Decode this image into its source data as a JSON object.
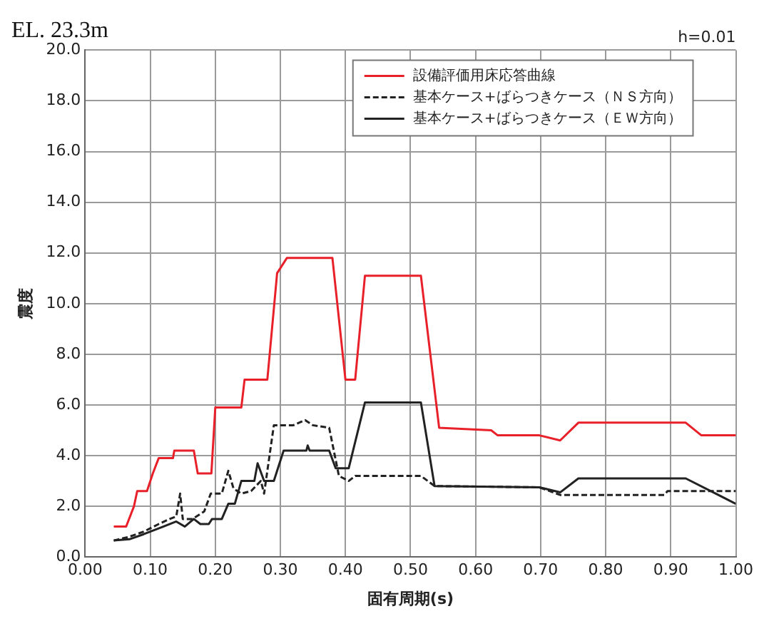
{
  "chart_data": {
    "type": "line",
    "title": "EL. 23.3m",
    "xlabel": "固有周期(s)",
    "ylabel": "震度",
    "annotations": [
      "h=0.01"
    ],
    "xlim": [
      0,
      1
    ],
    "ylim": [
      0,
      20
    ],
    "xticks": [
      {
        "value": 0,
        "label": "0.00"
      },
      {
        "value": 0.1,
        "label": "0.10"
      },
      {
        "value": 0.2,
        "label": "0.20"
      },
      {
        "value": 0.3,
        "label": "0.30"
      },
      {
        "value": 0.4,
        "label": "0.40"
      },
      {
        "value": 0.5,
        "label": "0.50"
      },
      {
        "value": 0.6,
        "label": "0.60"
      },
      {
        "value": 0.7,
        "label": "0.70"
      },
      {
        "value": 0.8,
        "label": "0.80"
      },
      {
        "value": 0.9,
        "label": "0.90"
      },
      {
        "value": 1,
        "label": "1.00"
      }
    ],
    "yticks": [
      {
        "value": 0,
        "label": "0.0"
      },
      {
        "value": 2,
        "label": "2.0"
      },
      {
        "value": 4,
        "label": "4.0"
      },
      {
        "value": 6,
        "label": "6.0"
      },
      {
        "value": 8,
        "label": "8.0"
      },
      {
        "value": 10,
        "label": "10.0"
      },
      {
        "value": 12,
        "label": "12.0"
      },
      {
        "value": 14,
        "label": "14.0"
      },
      {
        "value": 16,
        "label": "16.0"
      },
      {
        "value": 18,
        "label": "18.0"
      },
      {
        "value": 20,
        "label": "20.0"
      }
    ],
    "grid": true,
    "legend": "top right",
    "marker": "none",
    "series": [
      {
        "name": "設備評価用床応答曲線",
        "color": "#e8202a",
        "line_style": "solid",
        "x": [
          0.044,
          0.063,
          0.075,
          0.08,
          0.095,
          0.104,
          0.113,
          0.135,
          0.137,
          0.167,
          0.173,
          0.194,
          0.2,
          0.24,
          0.245,
          0.28,
          0.295,
          0.31,
          0.38,
          0.4,
          0.415,
          0.43,
          0.516,
          0.544,
          0.624,
          0.634,
          0.698,
          0.73,
          0.758,
          0.923,
          0.947,
          1.0
        ],
        "values": [
          1.2,
          1.2,
          2.0,
          2.6,
          2.6,
          3.3,
          3.9,
          3.9,
          4.2,
          4.2,
          3.3,
          3.3,
          5.9,
          5.9,
          7.0,
          7.0,
          11.2,
          11.8,
          11.8,
          7.0,
          7.0,
          11.1,
          11.1,
          5.1,
          5.0,
          4.8,
          4.8,
          4.6,
          5.3,
          5.3,
          4.8,
          4.8
        ]
      },
      {
        "name": "基本ケース+ばらつきケース（ＮＳ方向）",
        "color": "#222222",
        "line_style": "dashed",
        "x": [
          0.044,
          0.068,
          0.09,
          0.113,
          0.13,
          0.14,
          0.146,
          0.15,
          0.165,
          0.183,
          0.193,
          0.21,
          0.22,
          0.228,
          0.24,
          0.255,
          0.27,
          0.275,
          0.29,
          0.32,
          0.338,
          0.35,
          0.375,
          0.39,
          0.405,
          0.415,
          0.516,
          0.537,
          0.698,
          0.73,
          0.89,
          0.895,
          1.0
        ],
        "values": [
          0.65,
          0.8,
          1.0,
          1.3,
          1.5,
          1.6,
          2.5,
          1.5,
          1.5,
          1.8,
          2.5,
          2.5,
          3.4,
          2.7,
          2.5,
          2.6,
          3.0,
          2.5,
          5.2,
          5.2,
          5.4,
          5.2,
          5.1,
          3.2,
          3.0,
          3.2,
          3.2,
          2.8,
          2.75,
          2.45,
          2.45,
          2.6,
          2.6
        ]
      },
      {
        "name": "基本ケース+ばらつきケース（ＥＷ方向）",
        "color": "#222222",
        "line_style": "solid",
        "x": [
          0.044,
          0.068,
          0.09,
          0.1,
          0.12,
          0.14,
          0.153,
          0.167,
          0.177,
          0.19,
          0.195,
          0.21,
          0.22,
          0.23,
          0.24,
          0.26,
          0.265,
          0.275,
          0.29,
          0.305,
          0.34,
          0.342,
          0.345,
          0.375,
          0.385,
          0.405,
          0.43,
          0.516,
          0.537,
          0.698,
          0.73,
          0.758,
          0.923,
          1.0
        ],
        "values": [
          0.65,
          0.7,
          0.9,
          1.0,
          1.2,
          1.4,
          1.2,
          1.5,
          1.3,
          1.3,
          1.5,
          1.5,
          2.1,
          2.1,
          3.0,
          3.0,
          3.7,
          3.0,
          3.0,
          4.2,
          4.2,
          4.4,
          4.2,
          4.2,
          3.5,
          3.5,
          6.1,
          6.1,
          2.8,
          2.75,
          2.55,
          3.1,
          3.1,
          2.1
        ]
      }
    ]
  }
}
